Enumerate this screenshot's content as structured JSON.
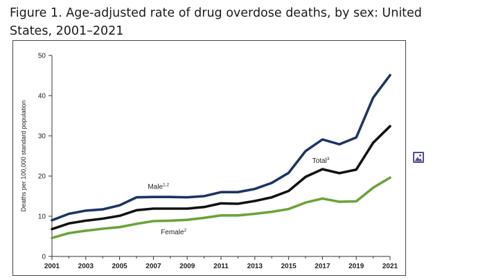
{
  "page": {
    "title": "Figure 1. Age-adjusted rate of drug overdose deaths, by sex: United States, 2001–2021"
  },
  "icons": {
    "side": "image-icon"
  },
  "chart_data": {
    "type": "line",
    "title": "Figure 1. Age-adjusted rate of drug overdose deaths, by sex: United States, 2001–2021",
    "xlabel": "",
    "ylabel": "Deaths per 100,000 standard population",
    "ylim": [
      0,
      50
    ],
    "yticks": [
      0,
      10,
      20,
      30,
      40,
      50
    ],
    "xlim": [
      2001,
      2021
    ],
    "xticks": [
      2001,
      2003,
      2005,
      2007,
      2009,
      2011,
      2013,
      2015,
      2017,
      2019,
      2021
    ],
    "grid": false,
    "x": [
      2001,
      2002,
      2003,
      2004,
      2005,
      2006,
      2007,
      2008,
      2009,
      2010,
      2011,
      2012,
      2013,
      2014,
      2015,
      2016,
      2017,
      2018,
      2019,
      2020,
      2021
    ],
    "series": [
      {
        "name": "Male",
        "label": "Male",
        "label_sup": "1,2",
        "color": "#1d3564",
        "values": [
          9.0,
          10.6,
          11.4,
          11.7,
          12.7,
          14.7,
          14.8,
          14.8,
          14.7,
          15.0,
          16.0,
          16.0,
          16.8,
          18.3,
          20.8,
          26.2,
          29.1,
          27.9,
          29.6,
          39.5,
          45.1
        ]
      },
      {
        "name": "Total",
        "label": "Total",
        "label_sup": "3",
        "color": "#111111",
        "values": [
          6.8,
          8.2,
          8.9,
          9.4,
          10.1,
          11.5,
          11.9,
          11.9,
          11.9,
          12.3,
          13.2,
          13.1,
          13.8,
          14.7,
          16.3,
          19.8,
          21.7,
          20.7,
          21.6,
          28.3,
          32.4
        ]
      },
      {
        "name": "Female",
        "label": "Female",
        "label_sup": "2",
        "color": "#6aa437",
        "values": [
          4.6,
          5.8,
          6.4,
          6.9,
          7.3,
          8.1,
          8.8,
          8.9,
          9.1,
          9.6,
          10.2,
          10.2,
          10.6,
          11.1,
          11.8,
          13.4,
          14.4,
          13.6,
          13.7,
          17.1,
          19.6
        ]
      }
    ]
  }
}
